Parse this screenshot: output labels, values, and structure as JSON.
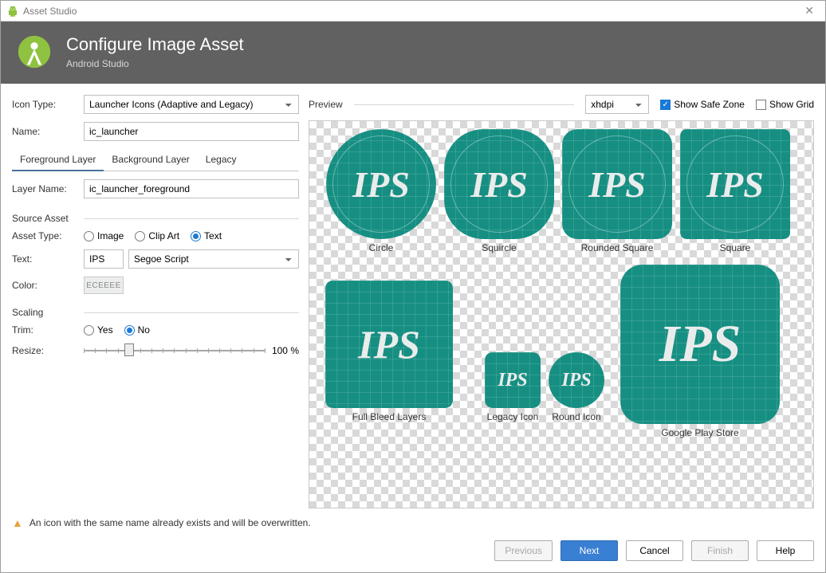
{
  "window": {
    "title": "Asset Studio"
  },
  "header": {
    "title": "Configure Image Asset",
    "subtitle": "Android Studio"
  },
  "form": {
    "iconType": {
      "label": "Icon Type:",
      "value": "Launcher Icons (Adaptive and Legacy)"
    },
    "name": {
      "label": "Name:",
      "value": "ic_launcher"
    },
    "tabs": {
      "foreground": "Foreground Layer",
      "background": "Background Layer",
      "legacy": "Legacy",
      "active": "foreground"
    },
    "layerName": {
      "label": "Layer Name:",
      "value": "ic_launcher_foreground"
    },
    "sourceAsset": {
      "section": "Source Asset",
      "assetType": {
        "label": "Asset Type:",
        "options": {
          "image": "Image",
          "clipart": "Clip Art",
          "text": "Text"
        },
        "selected": "text"
      },
      "text": {
        "label": "Text:",
        "value": "IPS",
        "fontValue": "Segoe Script"
      },
      "color": {
        "label": "Color:",
        "hex": "ECEEEE"
      }
    },
    "scaling": {
      "section": "Scaling",
      "trim": {
        "label": "Trim:",
        "yes": "Yes",
        "no": "No",
        "selected": "no"
      },
      "resize": {
        "label": "Resize:",
        "percent": 100,
        "min": 0,
        "max": 400,
        "thumbPosPct": 25
      }
    }
  },
  "preview": {
    "label": "Preview",
    "density": "xhdpi",
    "showSafeZone": {
      "label": "Show Safe Zone",
      "checked": true
    },
    "showGrid": {
      "label": "Show Grid",
      "checked": false
    },
    "iconText": "IPS",
    "iconColor": "#168f82",
    "textColor": "#EAECEC",
    "tiles": {
      "row1": [
        {
          "shape": "circle",
          "caption": "Circle",
          "size": 138,
          "font": 46
        },
        {
          "shape": "squircle",
          "caption": "Squircle",
          "size": 138,
          "font": 46
        },
        {
          "shape": "rsq",
          "caption": "Rounded Square",
          "size": 138,
          "font": 46
        },
        {
          "shape": "sq",
          "caption": "Square",
          "size": 138,
          "font": 46
        }
      ],
      "row2": [
        {
          "shape": "sq",
          "caption": "Full Bleed Layers",
          "size": 160,
          "font": 50
        },
        {
          "shape": "rsq",
          "caption": "Legacy Icon",
          "size": 70,
          "font": 24
        },
        {
          "shape": "circle",
          "caption": "Round Icon",
          "size": 70,
          "font": 24
        },
        {
          "shape": "rsq",
          "caption": "Google Play Store",
          "size": 200,
          "font": 66
        }
      ]
    }
  },
  "warning": "An icon with the same name already exists and will be overwritten.",
  "buttons": {
    "previous": "Previous",
    "next": "Next",
    "cancel": "Cancel",
    "finish": "Finish",
    "help": "Help"
  }
}
